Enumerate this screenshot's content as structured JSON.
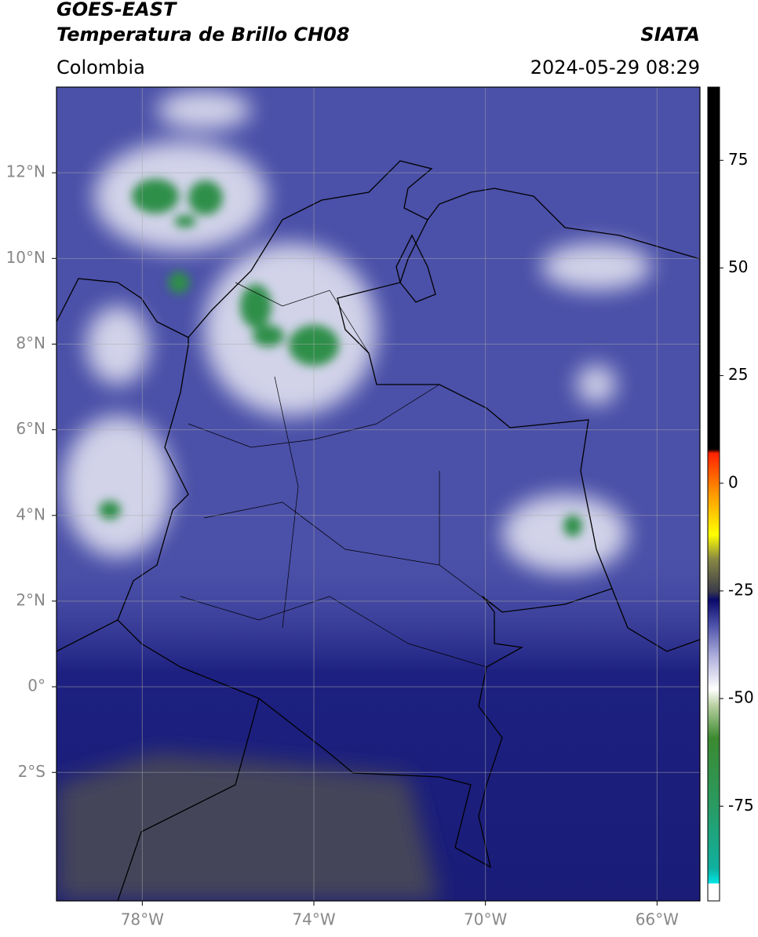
{
  "header": {
    "satellite": "GOES-EAST",
    "product": "Temperatura de Brillo CH08",
    "source": "SIATA",
    "region": "Colombia",
    "datetime": "2024-05-29 08:29"
  },
  "map": {
    "lonlim": [
      -80,
      -65
    ],
    "latlim": [
      -5,
      14
    ],
    "grid": true,
    "lon_ticks": [
      {
        "value": -78,
        "label": "78°W"
      },
      {
        "value": -74,
        "label": "74°W"
      },
      {
        "value": -70,
        "label": "70°W"
      },
      {
        "value": -66,
        "label": "66°W"
      }
    ],
    "lat_ticks": [
      {
        "value": 12,
        "label": "12°N"
      },
      {
        "value": 10,
        "label": "10°N"
      },
      {
        "value": 8,
        "label": "8°N"
      },
      {
        "value": 6,
        "label": "6°N"
      },
      {
        "value": 4,
        "label": "4°N"
      },
      {
        "value": 2,
        "label": "2°N"
      },
      {
        "value": 0,
        "label": "0°"
      },
      {
        "value": -2,
        "label": "2°S"
      }
    ]
  },
  "colorbar": {
    "lim": [
      -97,
      92
    ],
    "ticks": [
      75,
      50,
      25,
      0,
      -25,
      -50,
      -75
    ]
  }
}
